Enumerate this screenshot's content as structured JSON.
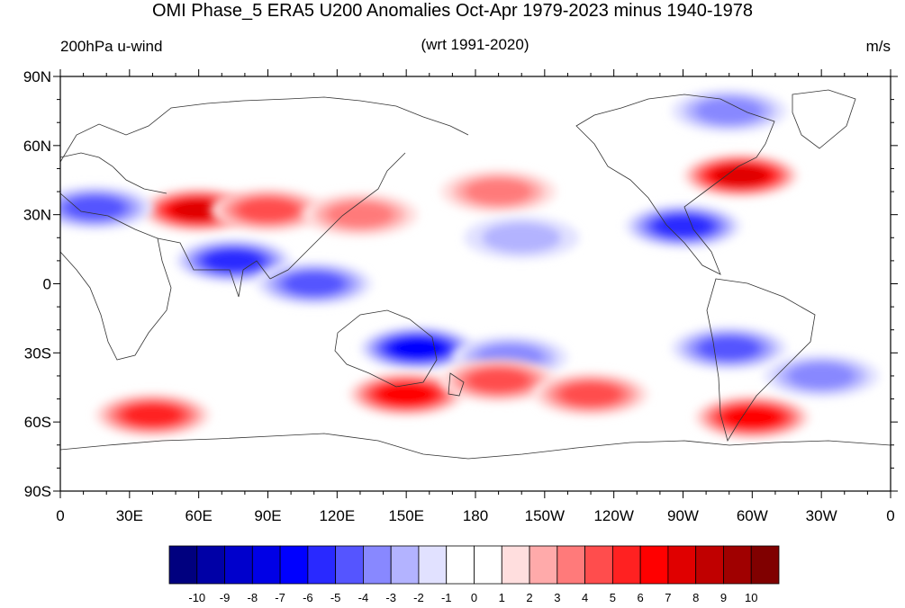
{
  "title": "OMI Phase_5 ERA5 U200 Anomalies Oct-Apr 1979-2023 minus 1940-1978",
  "subtitle_left": "200hPa u-wind",
  "subtitle_center": "(wrt 1991-2020)",
  "subtitle_right": "m/s",
  "lat_labels": [
    "90N",
    "60N",
    "30N",
    "0",
    "30S",
    "60S",
    "90S"
  ],
  "lon_labels": [
    "0",
    "30E",
    "60E",
    "90E",
    "120E",
    "150E",
    "180",
    "150W",
    "120W",
    "90W",
    "60W",
    "30W",
    "0"
  ],
  "colorbar": {
    "labels": [
      "-10",
      "-9",
      "-8",
      "-7",
      "-6",
      "-5",
      "-4",
      "-3",
      "-2",
      "-1",
      "0",
      "1",
      "2",
      "3",
      "4",
      "5",
      "6",
      "7",
      "8",
      "9",
      "10"
    ],
    "colors": [
      "#00007f",
      "#0000a6",
      "#0000cc",
      "#0000e6",
      "#0000ff",
      "#2929ff",
      "#5555ff",
      "#8888ff",
      "#b3b3ff",
      "#e1e1ff",
      "#ffffff",
      "#ffffff",
      "#ffdede",
      "#ffaaaa",
      "#ff7a7a",
      "#ff4d4d",
      "#ff2121",
      "#ff0000",
      "#e00000",
      "#c00000",
      "#a00000",
      "#800000"
    ]
  },
  "chart_data": {
    "type": "heatmap",
    "title": "OMI Phase_5 ERA5 U200 Anomalies Oct-Apr 1979-2023 minus 1940-1978",
    "variable": "200hPa u-wind",
    "units": "m/s",
    "reference": "wrt 1991-2020",
    "lon_range": [
      0,
      360
    ],
    "lat_range": [
      -90,
      90
    ],
    "color_range": [
      -10,
      10
    ],
    "features": [
      {
        "lon": 60,
        "lat": 32,
        "value": 7
      },
      {
        "lon": 90,
        "lat": 32,
        "value": 4
      },
      {
        "lon": 130,
        "lat": 30,
        "value": 3
      },
      {
        "lon": 15,
        "lat": 33,
        "value": -4
      },
      {
        "lon": 75,
        "lat": 10,
        "value": -5
      },
      {
        "lon": 110,
        "lat": 0,
        "value": -4
      },
      {
        "lon": 155,
        "lat": -28,
        "value": -6
      },
      {
        "lon": 195,
        "lat": -32,
        "value": -3
      },
      {
        "lon": 150,
        "lat": -48,
        "value": 6
      },
      {
        "lon": 40,
        "lat": -57,
        "value": 5
      },
      {
        "lon": 190,
        "lat": -42,
        "value": 4
      },
      {
        "lon": 230,
        "lat": -48,
        "value": 4
      },
      {
        "lon": 300,
        "lat": -58,
        "value": 6
      },
      {
        "lon": 295,
        "lat": 47,
        "value": 7
      },
      {
        "lon": 270,
        "lat": 25,
        "value": -5
      },
      {
        "lon": 290,
        "lat": 75,
        "value": -3
      },
      {
        "lon": 190,
        "lat": 40,
        "value": 3
      },
      {
        "lon": 200,
        "lat": 20,
        "value": -2
      },
      {
        "lon": 290,
        "lat": -28,
        "value": -4
      },
      {
        "lon": 330,
        "lat": -40,
        "value": -3
      }
    ]
  }
}
